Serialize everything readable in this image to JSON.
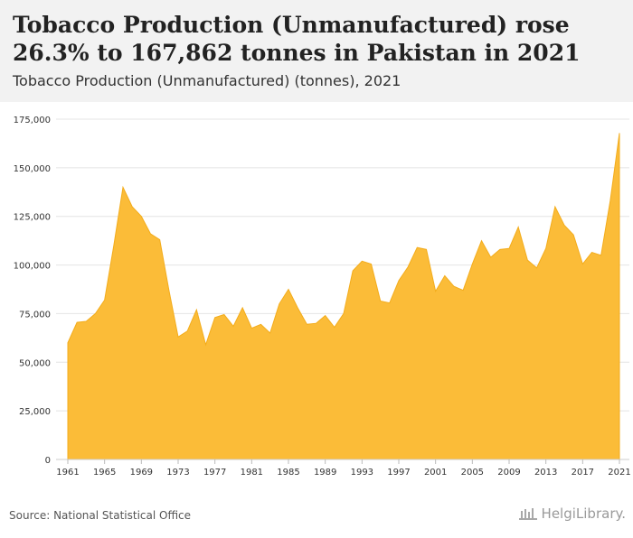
{
  "header": {
    "title": "Tobacco Production (Unmanufactured) rose 26.3% to 167,862 tonnes in Pakistan in 2021",
    "subtitle": "Tobacco Production (Unmanufactured) (tonnes), 2021"
  },
  "footer": {
    "source": "Source: National Statistical Office",
    "logo_text": "HelgiLibrary."
  },
  "colors": {
    "area": "#fbbc38",
    "area_stroke": "#f3ac1b",
    "grid": "#e4e4e4",
    "tick_label": "#333333",
    "header_bg": "#f2f2f2"
  },
  "chart_data": {
    "type": "area",
    "title": "Tobacco Production (Unmanufactured) (tonnes), 2021",
    "xlabel": "",
    "ylabel": "",
    "ylim": [
      0,
      175000
    ],
    "yticks": [
      0,
      25000,
      50000,
      75000,
      100000,
      125000,
      150000,
      175000
    ],
    "ytick_labels": [
      "0",
      "25,000",
      "50,000",
      "75,000",
      "100,000",
      "125,000",
      "150,000",
      "175,000"
    ],
    "xtick_labels": [
      "1961",
      "1965",
      "1969",
      "1973",
      "1977",
      "1981",
      "1985",
      "1989",
      "1993",
      "1997",
      "2001",
      "2005",
      "2009",
      "2013",
      "2017",
      "2021"
    ],
    "grid": true,
    "legend": "none",
    "x": [
      1961,
      1962,
      1963,
      1964,
      1965,
      1966,
      1967,
      1968,
      1969,
      1970,
      1971,
      1972,
      1973,
      1974,
      1975,
      1976,
      1977,
      1978,
      1979,
      1980,
      1981,
      1982,
      1983,
      1984,
      1985,
      1986,
      1987,
      1988,
      1989,
      1990,
      1991,
      1992,
      1993,
      1994,
      1995,
      1996,
      1997,
      1998,
      1999,
      2000,
      2001,
      2002,
      2003,
      2004,
      2005,
      2006,
      2007,
      2008,
      2009,
      2010,
      2011,
      2012,
      2013,
      2014,
      2015,
      2016,
      2017,
      2018,
      2019,
      2020,
      2021
    ],
    "values": [
      60000,
      70500,
      71000,
      75000,
      82000,
      110000,
      140000,
      130000,
      125000,
      116000,
      113000,
      87000,
      63000,
      66000,
      77000,
      59000,
      73000,
      74500,
      68500,
      78000,
      67500,
      69500,
      65000,
      80000,
      87500,
      78000,
      69500,
      70000,
      74000,
      68000,
      75000,
      97000,
      102000,
      100500,
      81500,
      80500,
      92000,
      99000,
      109000,
      108000,
      86500,
      94500,
      89000,
      87000,
      100500,
      112500,
      104000,
      108000,
      108500,
      119500,
      102500,
      98500,
      108500,
      130000,
      120500,
      115500,
      100500,
      106500,
      105000,
      133000,
      167862
    ]
  }
}
